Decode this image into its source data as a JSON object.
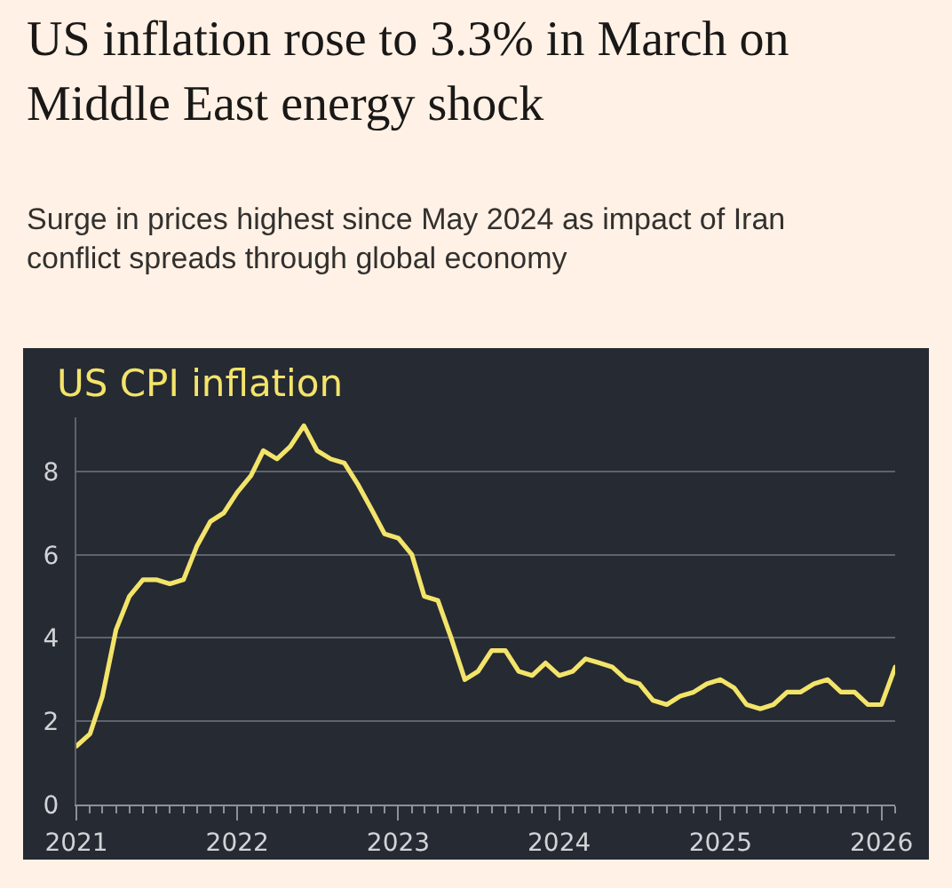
{
  "chart_data": {
    "type": "line",
    "title": "US inflation rose to 3.3% in March on Middle East energy shock",
    "subtitle": "Surge in prices highest since May 2024 as impact of Iran conflict spreads through global economy",
    "x": [
      "2021-01",
      "2021-02",
      "2021-03",
      "2021-04",
      "2021-05",
      "2021-06",
      "2021-07",
      "2021-08",
      "2021-09",
      "2021-10",
      "2021-11",
      "2021-12",
      "2022-01",
      "2022-02",
      "2022-03",
      "2022-04",
      "2022-05",
      "2022-06",
      "2022-07",
      "2022-08",
      "2022-09",
      "2022-10",
      "2022-11",
      "2022-12",
      "2023-01",
      "2023-02",
      "2023-03",
      "2023-04",
      "2023-05",
      "2023-06",
      "2023-07",
      "2023-08",
      "2023-09",
      "2023-10",
      "2023-11",
      "2023-12",
      "2024-01",
      "2024-02",
      "2024-03",
      "2024-04",
      "2024-05",
      "2024-06",
      "2024-07",
      "2024-08",
      "2024-09",
      "2024-10",
      "2024-11",
      "2024-12",
      "2025-01",
      "2025-02",
      "2025-03",
      "2025-04",
      "2025-05",
      "2025-06",
      "2025-07",
      "2025-08",
      "2025-09",
      "2025-10",
      "2025-11",
      "2025-12",
      "2026-01",
      "2026-02"
    ],
    "series": [
      {
        "name": "US CPI inflation",
        "color": "#f3e46a",
        "values": [
          1.4,
          1.7,
          2.6,
          4.2,
          5.0,
          5.4,
          5.4,
          5.3,
          5.4,
          6.2,
          6.8,
          7.0,
          7.5,
          7.9,
          8.5,
          8.3,
          8.6,
          9.1,
          8.5,
          8.3,
          8.2,
          7.7,
          7.1,
          6.5,
          6.4,
          6.0,
          5.0,
          4.9,
          4.0,
          3.0,
          3.2,
          3.7,
          3.7,
          3.2,
          3.1,
          3.4,
          3.1,
          3.2,
          3.5,
          3.4,
          3.3,
          3.0,
          2.9,
          2.5,
          2.4,
          2.6,
          2.7,
          2.9,
          3.0,
          2.8,
          2.4,
          2.3,
          2.4,
          2.7,
          2.7,
          2.9,
          3.0,
          2.7,
          2.7,
          2.4,
          2.4,
          3.3
        ]
      }
    ],
    "xlim": [
      "2021-01",
      "2026-02"
    ],
    "xticks": [
      "2021",
      {
        "value": "2021-02",
        "label": null
      },
      {
        "value": "2021-03",
        "label": null
      },
      {
        "value": "2021-04",
        "label": null
      },
      {
        "value": "2021-05",
        "label": null
      },
      {
        "value": "2021-06",
        "label": null
      },
      {
        "value": "2021-07",
        "label": null
      },
      {
        "value": "2021-08",
        "label": null
      },
      {
        "value": "2021-09",
        "label": null
      },
      {
        "value": "2021-10",
        "label": null
      },
      {
        "value": "2021-11",
        "label": null
      },
      {
        "value": "2021-12",
        "label": null
      },
      "2022",
      {
        "value": "2022-02",
        "label": null
      },
      {
        "value": "2022-03",
        "label": null
      },
      {
        "value": "2022-04",
        "label": null
      },
      {
        "value": "2022-05",
        "label": null
      },
      {
        "value": "2022-06",
        "label": null
      },
      {
        "value": "2022-07",
        "label": null
      },
      {
        "value": "2022-08",
        "label": null
      },
      {
        "value": "2022-09",
        "label": null
      },
      {
        "value": "2022-10",
        "label": null
      },
      {
        "value": "2022-11",
        "label": null
      },
      {
        "value": "2022-12",
        "label": null
      },
      "2023",
      {
        "value": "2023-02",
        "label": null
      },
      {
        "value": "2023-03",
        "label": null
      },
      {
        "value": "2023-04",
        "label": null
      },
      {
        "value": "2023-05",
        "label": null
      },
      {
        "value": "2023-06",
        "label": null
      },
      {
        "value": "2023-07",
        "label": null
      },
      {
        "value": "2023-08",
        "label": null
      },
      {
        "value": "2023-09",
        "label": null
      },
      {
        "value": "2023-10",
        "label": null
      },
      {
        "value": "2023-11",
        "label": null
      },
      {
        "value": "2023-12",
        "label": null
      },
      "2024",
      {
        "value": "2024-02",
        "label": null
      },
      {
        "value": "2024-03",
        "label": null
      },
      {
        "value": "2024-04",
        "label": null
      },
      {
        "value": "2024-05",
        "label": null
      },
      {
        "value": "2024-06",
        "label": null
      },
      {
        "value": "2024-07",
        "label": null
      },
      {
        "value": "2024-08",
        "label": null
      },
      {
        "value": "2024-09",
        "label": null
      },
      {
        "value": "2024-10",
        "label": null
      },
      {
        "value": "2024-11",
        "label": null
      },
      {
        "value": "2024-12",
        "label": null
      },
      "2025",
      {
        "value": "2025-02",
        "label": null
      },
      {
        "value": "2025-03",
        "label": null
      },
      {
        "value": "2025-04",
        "label": null
      },
      {
        "value": "2025-05",
        "label": null
      },
      {
        "value": "2025-06",
        "label": null
      },
      {
        "value": "2025-07",
        "label": null
      },
      {
        "value": "2025-08",
        "label": null
      },
      {
        "value": "2025-09",
        "label": null
      },
      {
        "value": "2025-10",
        "label": null
      },
      {
        "value": "2025-11",
        "label": null
      },
      {
        "value": "2025-12",
        "label": null
      },
      "2026",
      {
        "value": "2026-02",
        "label": null
      }
    ],
    "ylim": [
      0,
      9.3
    ],
    "yticks": [
      0,
      2,
      4,
      6,
      8
    ],
    "grid": "y",
    "line_style": "solid"
  }
}
